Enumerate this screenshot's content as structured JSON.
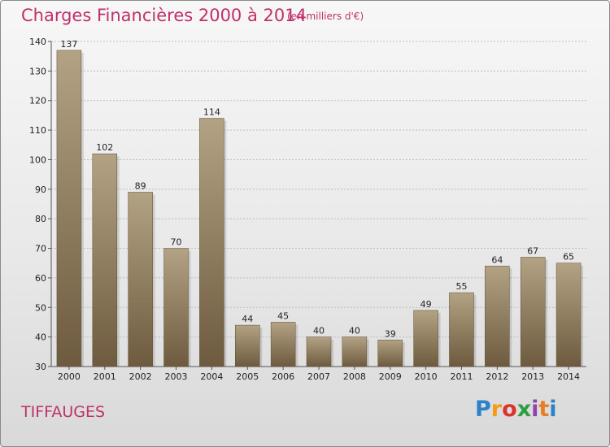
{
  "header": {
    "title": "Charges Financières 2000 à 2014",
    "subtitle": "(en milliers d'€)"
  },
  "footer": {
    "commune": "TIFFAUGES",
    "logo_letters": [
      "P",
      "r",
      "o",
      "x",
      "i",
      "t",
      "i"
    ]
  },
  "colors": {
    "title": "#c0306a",
    "bar_top": "#b3a284",
    "bar_bottom": "#6e5b3f"
  },
  "chart_data": {
    "type": "bar",
    "title": "Charges Financières 2000 à 2014",
    "subtitle": "(en milliers d'€)",
    "xlabel": "",
    "ylabel": "",
    "categories": [
      "2000",
      "2001",
      "2002",
      "2003",
      "2004",
      "2005",
      "2006",
      "2007",
      "2008",
      "2009",
      "2010",
      "2011",
      "2012",
      "2013",
      "2014"
    ],
    "values": [
      137,
      102,
      89,
      70,
      114,
      44,
      45,
      40,
      40,
      39,
      49,
      55,
      64,
      67,
      65
    ],
    "ylim": [
      30,
      140
    ],
    "yticks": [
      30,
      40,
      50,
      60,
      70,
      80,
      90,
      100,
      110,
      120,
      130,
      140
    ],
    "grid": true,
    "legend": "none"
  }
}
